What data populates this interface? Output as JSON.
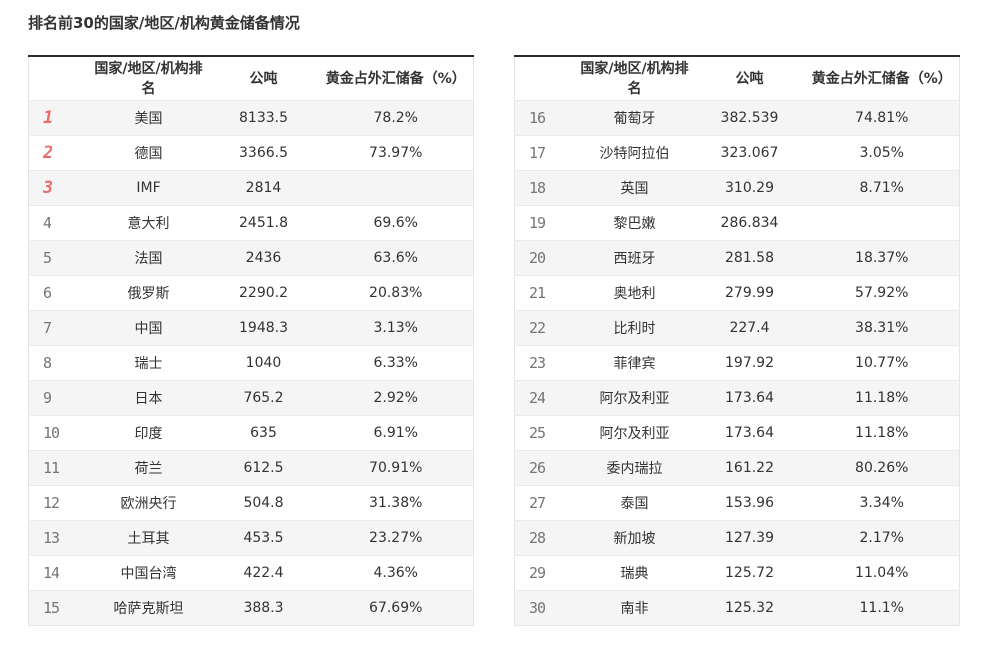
{
  "page_title": "排名前30的国家/地区/机构黄金储备情况",
  "columns": {
    "rank": "",
    "name": "国家/地区/机构排名",
    "tonnes": "公吨",
    "pct": "黄金占外汇储备（%）"
  },
  "colors": {
    "accent_red": "#ed6b6b",
    "rank_gray": "#757575",
    "alt_row_bg": "#f5f5f5",
    "header_top_border": "#2b2b2b",
    "light_border": "#e5e5e5",
    "text": "#333333"
  },
  "tables": [
    {
      "name": "ranks-1-15",
      "rows": [
        {
          "rank": "1",
          "name": "美国",
          "tonnes": "8133.5",
          "pct": "78.2%"
        },
        {
          "rank": "2",
          "name": "德国",
          "tonnes": "3366.5",
          "pct": "73.97%"
        },
        {
          "rank": "3",
          "name": "IMF",
          "tonnes": "2814",
          "pct": ""
        },
        {
          "rank": "4",
          "name": "意大利",
          "tonnes": "2451.8",
          "pct": "69.6%"
        },
        {
          "rank": "5",
          "name": "法国",
          "tonnes": "2436",
          "pct": "63.6%"
        },
        {
          "rank": "6",
          "name": "俄罗斯",
          "tonnes": "2290.2",
          "pct": "20.83%"
        },
        {
          "rank": "7",
          "name": "中国",
          "tonnes": "1948.3",
          "pct": "3.13%"
        },
        {
          "rank": "8",
          "name": "瑞士",
          "tonnes": "1040",
          "pct": "6.33%"
        },
        {
          "rank": "9",
          "name": "日本",
          "tonnes": "765.2",
          "pct": "2.92%"
        },
        {
          "rank": "10",
          "name": "印度",
          "tonnes": "635",
          "pct": "6.91%"
        },
        {
          "rank": "11",
          "name": "荷兰",
          "tonnes": "612.5",
          "pct": "70.91%"
        },
        {
          "rank": "12",
          "name": "欧洲央行",
          "tonnes": "504.8",
          "pct": "31.38%"
        },
        {
          "rank": "13",
          "name": "土耳其",
          "tonnes": "453.5",
          "pct": "23.27%"
        },
        {
          "rank": "14",
          "name": "中国台湾",
          "tonnes": "422.4",
          "pct": "4.36%"
        },
        {
          "rank": "15",
          "name": "哈萨克斯坦",
          "tonnes": "388.3",
          "pct": "67.69%"
        }
      ]
    },
    {
      "name": "ranks-16-30",
      "rows": [
        {
          "rank": "16",
          "name": "葡萄牙",
          "tonnes": "382.539",
          "pct": "74.81%"
        },
        {
          "rank": "17",
          "name": "沙特阿拉伯",
          "tonnes": "323.067",
          "pct": "3.05%"
        },
        {
          "rank": "18",
          "name": "英国",
          "tonnes": "310.29",
          "pct": "8.71%"
        },
        {
          "rank": "19",
          "name": "黎巴嫩",
          "tonnes": "286.834",
          "pct": ""
        },
        {
          "rank": "20",
          "name": "西班牙",
          "tonnes": "281.58",
          "pct": "18.37%"
        },
        {
          "rank": "21",
          "name": "奥地利",
          "tonnes": "279.99",
          "pct": "57.92%"
        },
        {
          "rank": "22",
          "name": "比利时",
          "tonnes": "227.4",
          "pct": "38.31%"
        },
        {
          "rank": "23",
          "name": "菲律宾",
          "tonnes": "197.92",
          "pct": "10.77%"
        },
        {
          "rank": "24",
          "name": "阿尔及利亚",
          "tonnes": "173.64",
          "pct": "11.18%"
        },
        {
          "rank": "25",
          "name": "阿尔及利亚",
          "tonnes": "173.64",
          "pct": "11.18%"
        },
        {
          "rank": "26",
          "name": "委内瑞拉",
          "tonnes": "161.22",
          "pct": "80.26%"
        },
        {
          "rank": "27",
          "name": "泰国",
          "tonnes": "153.96",
          "pct": "3.34%"
        },
        {
          "rank": "28",
          "name": "新加坡",
          "tonnes": "127.39",
          "pct": "2.17%"
        },
        {
          "rank": "29",
          "name": "瑞典",
          "tonnes": "125.72",
          "pct": "11.04%"
        },
        {
          "rank": "30",
          "name": "南非",
          "tonnes": "125.32",
          "pct": "11.1%"
        }
      ]
    }
  ]
}
